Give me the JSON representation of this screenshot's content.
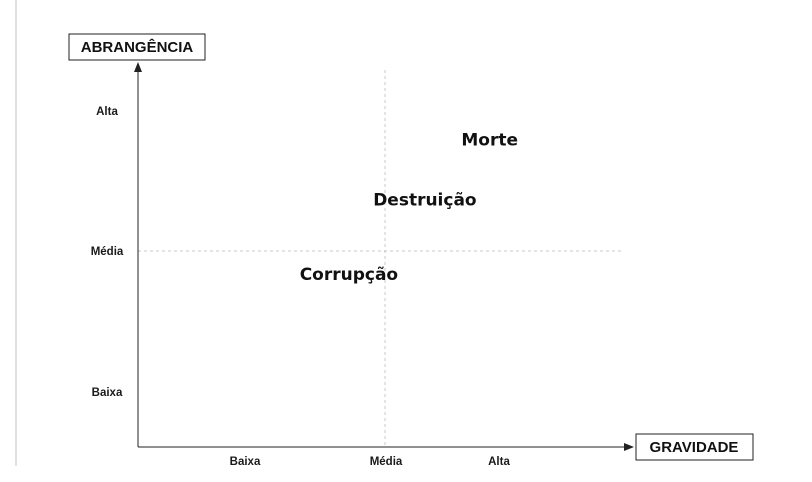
{
  "chart_data": {
    "type": "scatter",
    "title": "",
    "xlabel": "GRAVIDADE",
    "ylabel": "ABRANGÊNCIA",
    "x_categories": [
      "Baixa",
      "Média",
      "Alta"
    ],
    "y_categories": [
      "Baixa",
      "Média",
      "Alta"
    ],
    "xlim": [
      0,
      3
    ],
    "ylim": [
      0,
      3
    ],
    "grid": "dashed center lines at Média",
    "points": [
      {
        "label": "Corrupção",
        "x": 1.1,
        "y": 1.33
      },
      {
        "label": "Destruição",
        "x": 1.6,
        "y": 1.92
      },
      {
        "label": "Morte",
        "x": 2.2,
        "y": 2.4
      }
    ]
  },
  "colors": {
    "axis": "#222222",
    "grid": "#c8c8c8",
    "text": "#111111"
  }
}
